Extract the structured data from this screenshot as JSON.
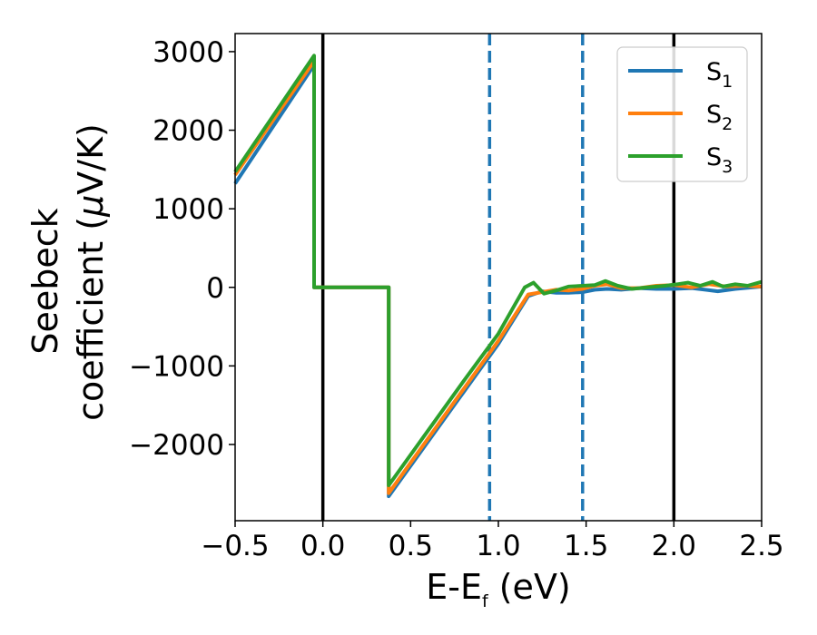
{
  "chart_data": {
    "type": "line",
    "title": "",
    "xlabel": {
      "main": "E-E",
      "sub": "f",
      "unit": " (eV)"
    },
    "ylabel": {
      "line1": "Seebeck",
      "line2_a": "coefficient  (",
      "line2_mu": "μ",
      "line2_b": "V/K)"
    },
    "xlim": [
      -0.5,
      2.5
    ],
    "ylim": [
      -2970,
      3230
    ],
    "xticks": [
      {
        "value": -0.5,
        "label": "−0.5"
      },
      {
        "value": 0.0,
        "label": "0.0"
      },
      {
        "value": 0.5,
        "label": "0.5"
      },
      {
        "value": 1.0,
        "label": "1.0"
      },
      {
        "value": 1.5,
        "label": "1.5"
      },
      {
        "value": 2.0,
        "label": "2.0"
      },
      {
        "value": 2.5,
        "label": "2.5"
      }
    ],
    "yticks": [
      {
        "value": 3000,
        "label": "3000"
      },
      {
        "value": 2000,
        "label": "2000"
      },
      {
        "value": 1000,
        "label": "1000"
      },
      {
        "value": 0,
        "label": "0"
      },
      {
        "value": -1000,
        "label": "−1000"
      },
      {
        "value": -2000,
        "label": "−2000"
      }
    ],
    "grid": false,
    "legend_position": "top-right",
    "vlines": [
      {
        "x": 0.0,
        "style": "solid",
        "color": "#000000"
      },
      {
        "x": 2.0,
        "style": "solid",
        "color": "#000000"
      },
      {
        "x": 0.95,
        "style": "dashed",
        "color": "#1f77b4"
      },
      {
        "x": 1.48,
        "style": "dashed",
        "color": "#1f77b4"
      }
    ],
    "series": [
      {
        "name": "S",
        "name_sub": "1",
        "color": "#1f77b4",
        "x": [
          -0.5,
          -0.05,
          -0.0499,
          0.375,
          0.3751,
          0.8,
          1.0,
          1.17,
          1.25,
          1.33,
          1.4,
          1.48,
          1.55,
          1.62,
          1.7,
          1.8,
          1.9,
          2.0,
          2.1,
          2.18,
          2.25,
          2.35,
          2.45,
          2.5
        ],
        "y": [
          1320,
          2830,
          0,
          0,
          -2660,
          -1340,
          -720,
          -110,
          -50,
          -70,
          -70,
          -60,
          -30,
          -20,
          -30,
          -10,
          -20,
          -20,
          -10,
          -30,
          -50,
          -20,
          0,
          10
        ]
      },
      {
        "name": "S",
        "name_sub": "2",
        "color": "#ff7f0e",
        "x": [
          -0.5,
          -0.05,
          -0.0499,
          0.375,
          0.3751,
          0.8,
          1.0,
          1.17,
          1.25,
          1.33,
          1.4,
          1.48,
          1.55,
          1.62,
          1.7,
          1.8,
          1.9,
          2.0,
          2.1,
          2.2,
          2.3,
          2.4,
          2.5
        ],
        "y": [
          1430,
          2880,
          0,
          0,
          -2620,
          -1300,
          -680,
          -90,
          -60,
          -30,
          -40,
          -20,
          20,
          40,
          -10,
          -10,
          20,
          30,
          0,
          40,
          10,
          20,
          10
        ]
      },
      {
        "name": "S",
        "name_sub": "3",
        "color": "#2ca02c",
        "x": [
          -0.5,
          -0.05,
          -0.0499,
          0.375,
          0.3751,
          0.8,
          1.0,
          1.15,
          1.2,
          1.26,
          1.33,
          1.4,
          1.48,
          1.55,
          1.61,
          1.68,
          1.76,
          1.85,
          1.95,
          2.02,
          2.08,
          2.15,
          2.22,
          2.28,
          2.35,
          2.42,
          2.5
        ],
        "y": [
          1470,
          2950,
          0,
          0,
          -2520,
          -1200,
          -590,
          0,
          60,
          -80,
          -40,
          10,
          20,
          30,
          80,
          20,
          -20,
          0,
          20,
          40,
          60,
          20,
          70,
          10,
          40,
          20,
          70
        ]
      }
    ]
  }
}
